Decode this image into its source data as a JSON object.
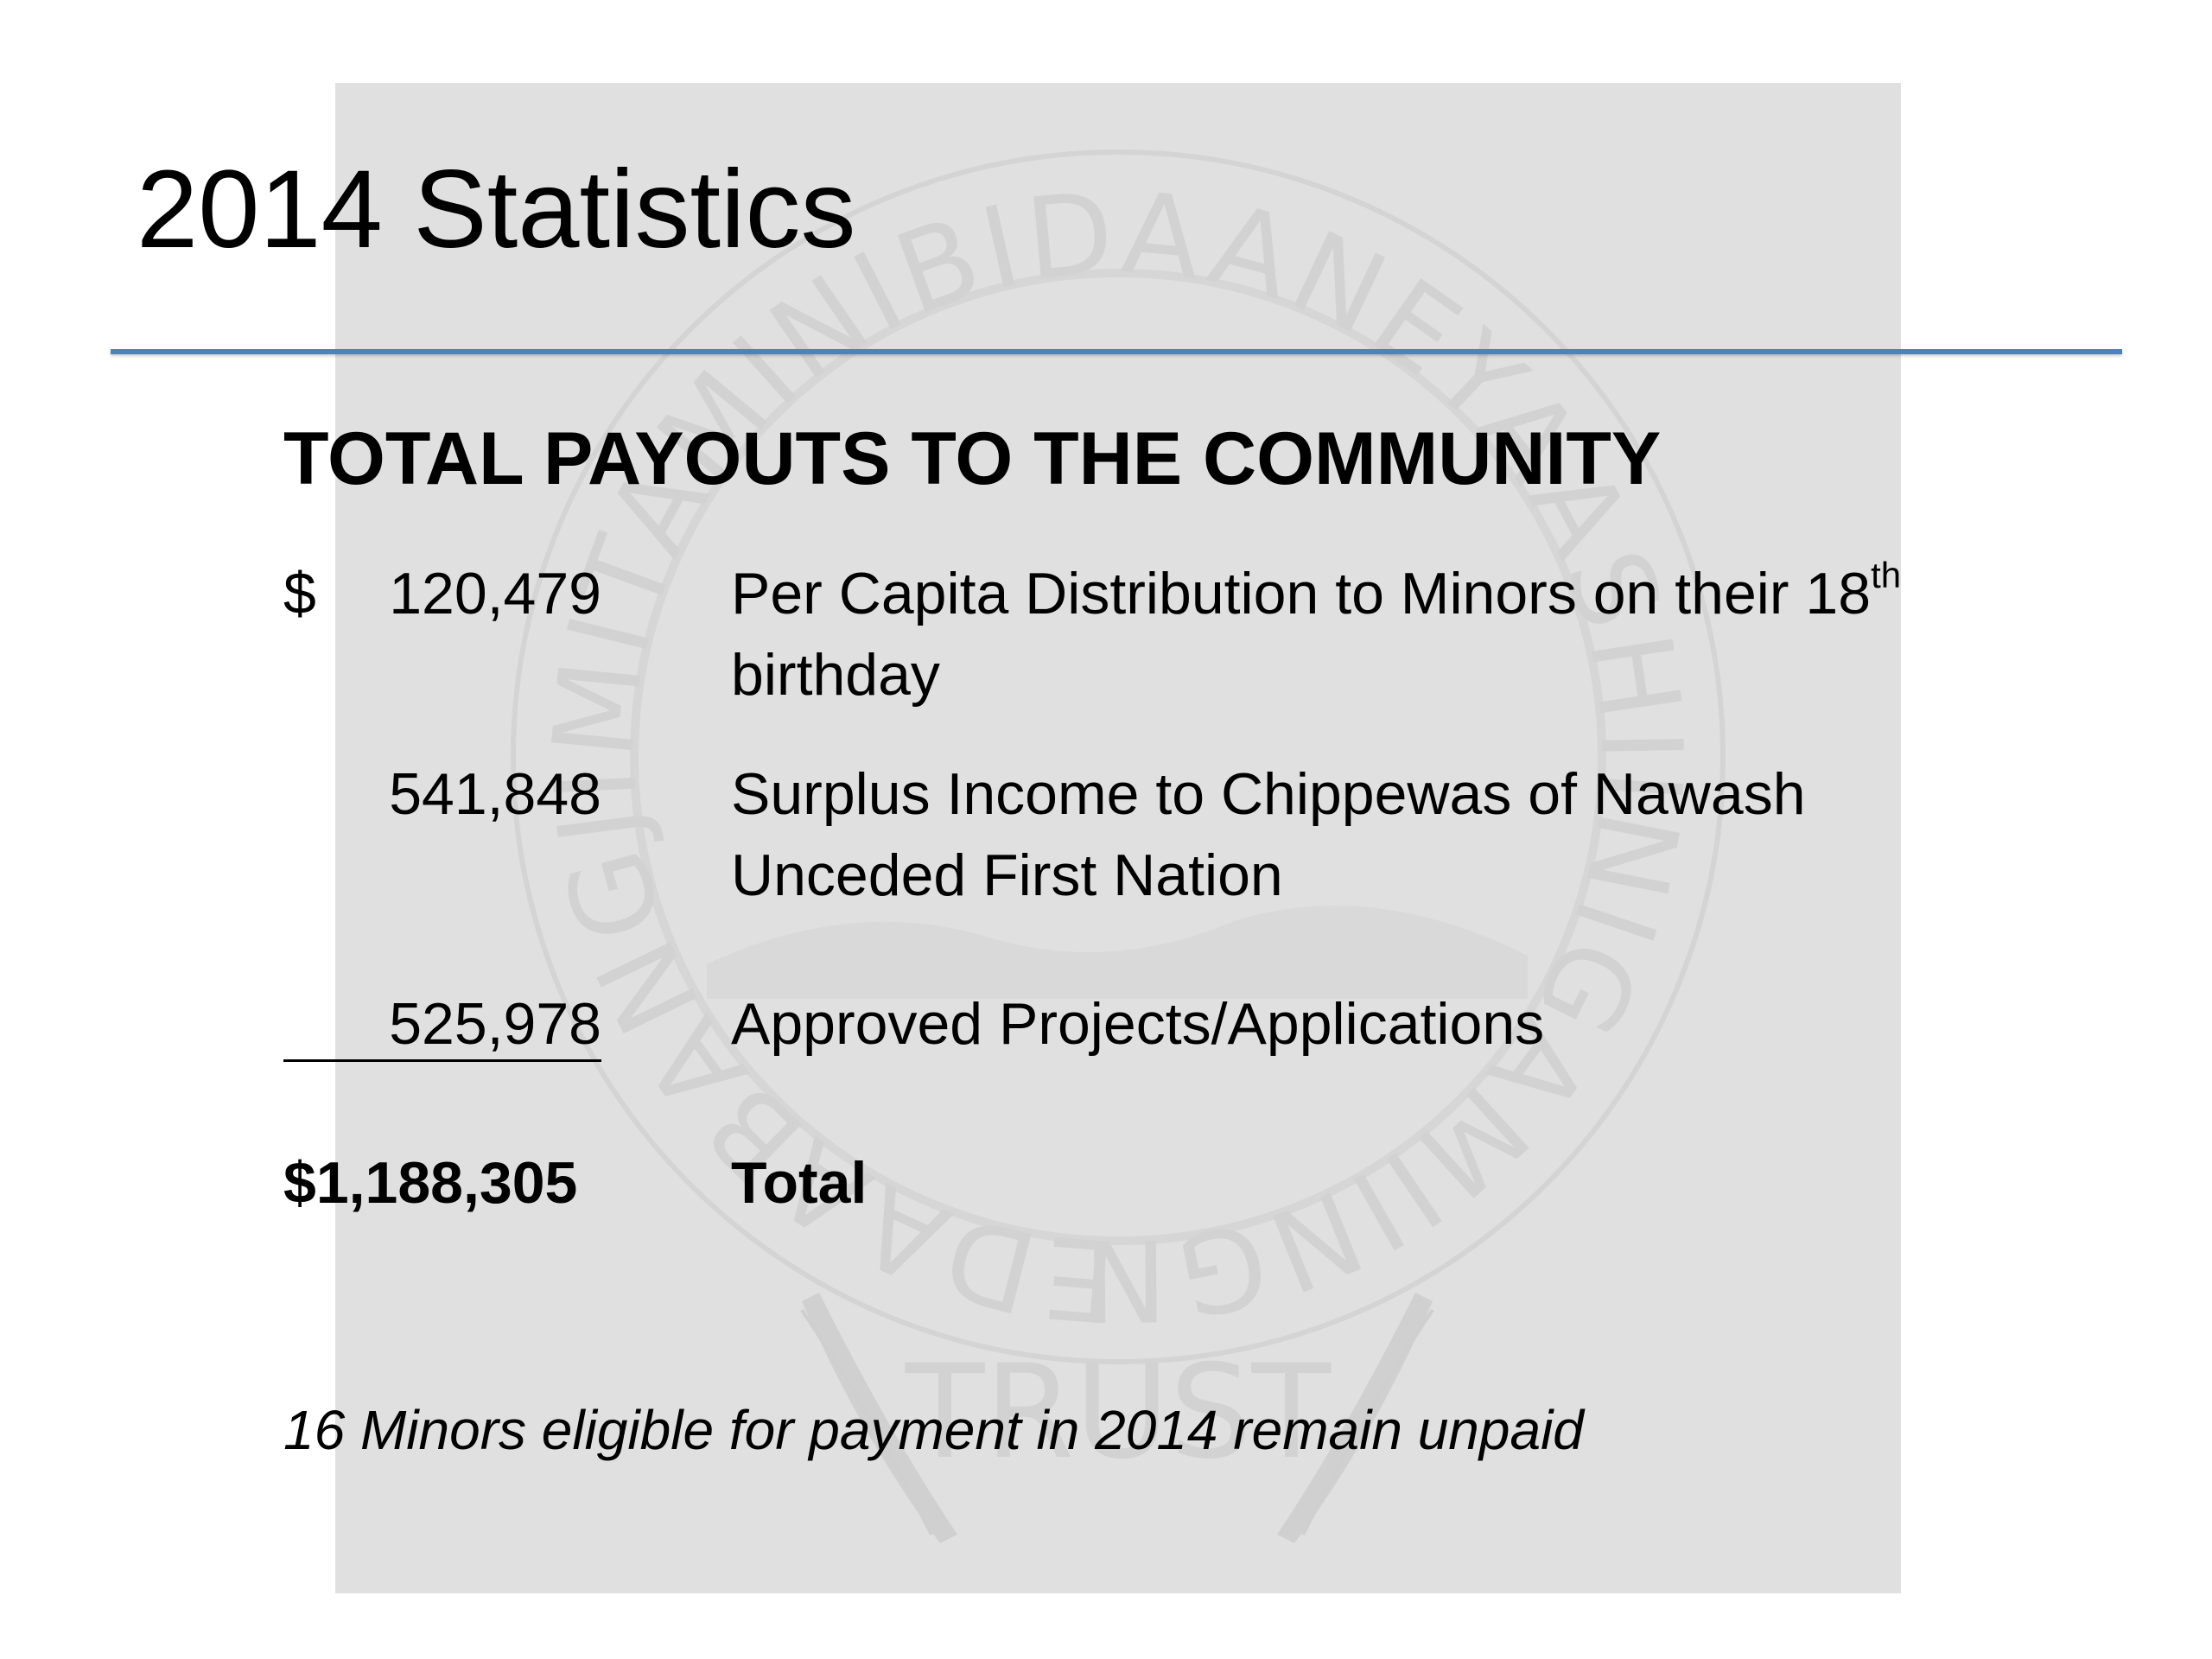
{
  "slide": {
    "title": "2014 Statistics",
    "heading": "TOTAL PAYOUTS TO THE COMMUNITY",
    "rows": [
      {
        "currency": "$",
        "amount": "120,479",
        "desc_line1_prefix": "Per Capita Distribution to Minors on their 18",
        "desc_line1_sup": "th",
        "desc_line2": "birthday"
      },
      {
        "amount": "541,848",
        "desc_line1": "Surplus Income to Chippewas of Nawash",
        "desc_line2": "Unceded First Nation"
      },
      {
        "amount": "525,978",
        "desc_line1": "Approved Projects/Applications"
      }
    ],
    "total": {
      "amount": "$1,188,305",
      "label": "Total"
    },
    "footnote": "16 Minors eligible for payment in 2014 remain unpaid"
  },
  "watermark": {
    "ring_text": "EDAABANGJIMITAMINIBIDAANEYAASHIINIGAMIINGNINAABBENDAAGZIIG",
    "bottom_text": "TRUST",
    "colors": {
      "ring": "#d4d4d4",
      "text": "#d2d2d2"
    }
  },
  "theme": {
    "accent_rule": "#4f81bd",
    "panel": "#e0e0e0",
    "text": "#000000"
  }
}
